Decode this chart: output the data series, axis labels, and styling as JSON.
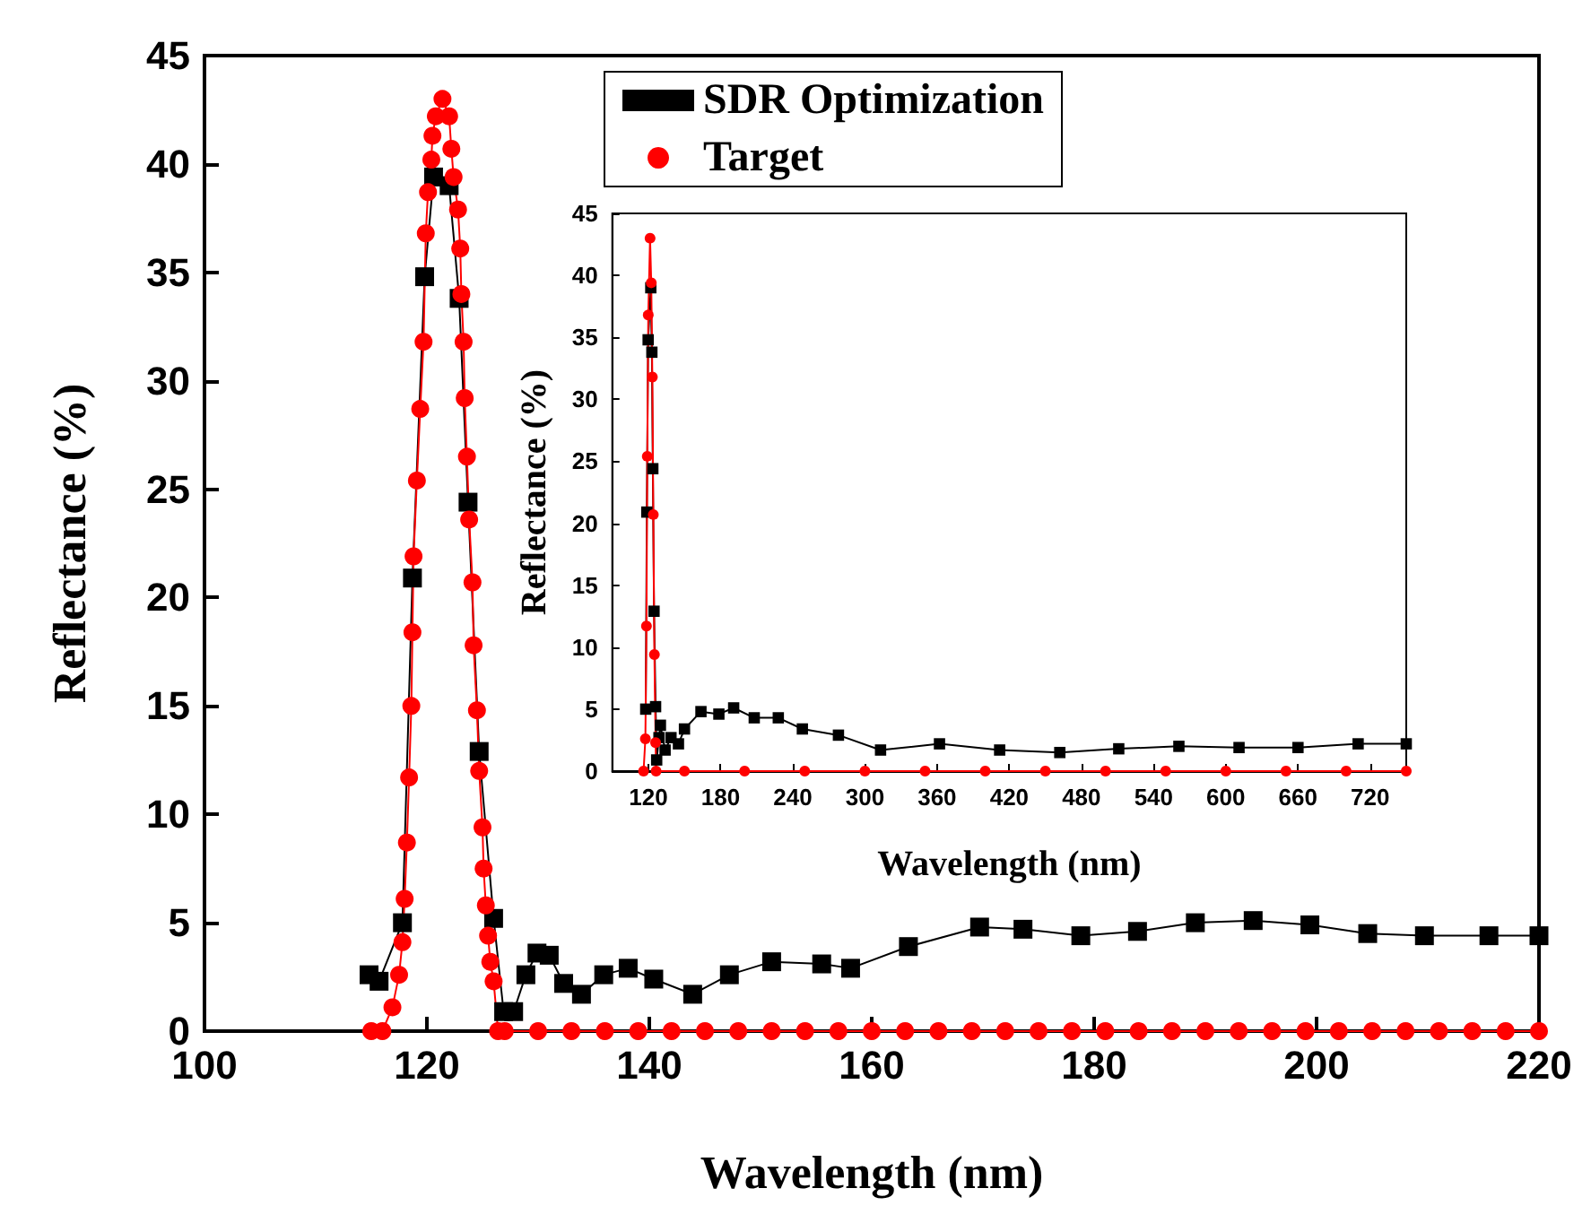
{
  "chart_data": [
    {
      "type": "line",
      "xlabel": "Wavelength (nm)",
      "ylabel": "Reflectance (%)",
      "xlim": [
        100,
        220
      ],
      "xticks": [
        100,
        120,
        140,
        160,
        180,
        200,
        220
      ],
      "ylim": [
        0,
        45
      ],
      "yticks": [
        0,
        5,
        10,
        15,
        20,
        25,
        30,
        35,
        40,
        45
      ],
      "legend": "top",
      "series": [
        {
          "name": "SDR Optimization",
          "color": "#000000",
          "marker": "square",
          "x": [
            114.8,
            115.7,
            117.8,
            118.7,
            119.8,
            120.6,
            122.0,
            122.9,
            123.7,
            124.7,
            126.0,
            126.9,
            127.8,
            128.9,
            129.9,
            131.0,
            132.3,
            133.9,
            135.9,
            138.1,
            140.4,
            143.9,
            147.2,
            151.0,
            155.5,
            158.1,
            163.3,
            169.7,
            173.6,
            178.8,
            183.9,
            189.1,
            194.3,
            199.4,
            204.6,
            209.7,
            215.5,
            220
          ],
          "values": [
            2.6,
            2.3,
            5.0,
            20.9,
            34.8,
            39.4,
            39.0,
            33.8,
            24.4,
            12.9,
            5.2,
            0.9,
            0.9,
            2.6,
            3.6,
            3.5,
            2.2,
            1.7,
            2.6,
            2.9,
            2.4,
            1.7,
            2.6,
            3.2,
            3.1,
            2.9,
            3.9,
            4.8,
            4.7,
            4.4,
            4.6,
            5.0,
            5.1,
            4.9,
            4.5,
            4.4,
            4.4,
            4.4
          ]
        },
        {
          "name": "Target",
          "color": "#ff0000",
          "marker": "circle",
          "x": [
            115,
            116,
            116.9,
            117.5,
            117.8,
            118.0,
            118.2,
            118.4,
            118.6,
            118.7,
            118.8,
            119.1,
            119.4,
            119.7,
            119.9,
            120.1,
            120.4,
            120.5,
            120.8,
            121.4,
            122.0,
            122.2,
            122.4,
            122.8,
            123.0,
            123.1,
            123.3,
            123.4,
            123.6,
            123.8,
            124.1,
            124.2,
            124.5,
            124.7,
            125.0,
            125.1,
            125.3,
            125.5,
            125.7,
            126.0,
            126.4,
            127,
            130,
            133,
            136,
            139,
            142,
            145,
            148,
            151,
            154,
            157,
            160,
            163,
            166,
            169,
            172,
            175,
            178,
            181,
            184,
            187,
            190,
            193,
            196,
            199,
            202,
            205,
            208,
            211,
            214,
            217,
            220
          ],
          "values": [
            0,
            0,
            1.1,
            2.6,
            4.1,
            6.1,
            8.7,
            11.7,
            15.0,
            18.4,
            21.9,
            25.4,
            28.7,
            31.8,
            36.8,
            38.7,
            40.2,
            41.3,
            42.2,
            43.0,
            42.2,
            40.7,
            39.4,
            37.9,
            36.1,
            34.0,
            31.8,
            29.2,
            26.5,
            23.6,
            20.7,
            17.8,
            14.8,
            12.0,
            9.4,
            7.5,
            5.8,
            4.4,
            3.2,
            2.3,
            0,
            0,
            0,
            0,
            0,
            0,
            0,
            0,
            0,
            0,
            0,
            0,
            0,
            0,
            0,
            0,
            0,
            0,
            0,
            0,
            0,
            0,
            0,
            0,
            0,
            0,
            0,
            0,
            0,
            0,
            0,
            0,
            0
          ]
        }
      ]
    },
    {
      "type": "line",
      "xlabel": "Wavelength (nm)",
      "ylabel": "Reflectance (%)",
      "xlim": [
        90,
        750
      ],
      "xticks": [
        120,
        180,
        240,
        300,
        360,
        420,
        480,
        540,
        600,
        660,
        720
      ],
      "ylim": [
        0,
        45
      ],
      "yticks": [
        0,
        5,
        10,
        15,
        20,
        25,
        30,
        35,
        40,
        45
      ],
      "series": [
        {
          "color": "#000000",
          "marker": "square",
          "x": [
            117.8,
            118.7,
            119.8,
            122.0,
            122.9,
            123.7,
            124.7,
            126.0,
            126.9,
            128.8,
            130.0,
            133.9,
            138.8,
            145,
            150,
            163.7,
            178.6,
            190.9,
            208,
            228,
            248,
            278,
            313,
            362,
            412,
            462,
            511,
            561,
            611,
            660,
            710,
            750
          ],
          "values": [
            5.0,
            20.9,
            34.8,
            39.0,
            33.8,
            24.4,
            12.9,
            5.2,
            0.9,
            2.7,
            3.7,
            1.7,
            2.7,
            2.2,
            3.4,
            4.8,
            4.6,
            5.1,
            4.3,
            4.3,
            3.4,
            2.9,
            1.7,
            2.2,
            1.7,
            1.5,
            1.8,
            2.0,
            1.9,
            1.9,
            2.2,
            2.2
          ]
        },
        {
          "color": "#ff0000",
          "marker": "circle",
          "x": [
            116,
            117.5,
            118.4,
            119.1,
            119.9,
            121.4,
            122.4,
            123.3,
            124.1,
            125.0,
            126.0,
            126.4,
            150,
            200,
            250,
            300,
            350,
            400,
            450,
            500,
            550,
            600,
            650,
            700,
            750
          ],
          "values": [
            0,
            2.6,
            11.7,
            25.4,
            36.8,
            43.0,
            39.4,
            31.8,
            20.7,
            9.4,
            2.3,
            0,
            0,
            0,
            0,
            0,
            0,
            0,
            0,
            0,
            0,
            0,
            0,
            0,
            0
          ]
        }
      ]
    }
  ]
}
